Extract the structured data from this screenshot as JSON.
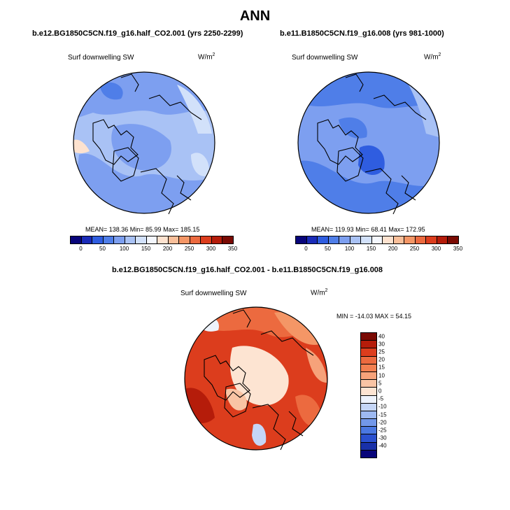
{
  "title": "ANN",
  "panels": [
    {
      "title": "b.e12.BG1850C5CN.f19_g16.half_CO2.001 (yrs 2250-2299)",
      "variable": "Surf downwelling SW",
      "units_base": "W/m",
      "units_exp": "2",
      "stats": "MEAN= 138.36  Min=  85.99  Max= 185.15"
    },
    {
      "title": "b.e11.B1850C5CN.f19_g16.008 (yrs 981-1000)",
      "variable": "Surf downwelling SW",
      "units_base": "W/m",
      "units_exp": "2",
      "stats": "MEAN= 119.93  Min=  68.41  Max= 172.95"
    }
  ],
  "diff_panel": {
    "title": "b.e12.BG1850C5CN.f19_g16.half_CO2.001 - b.e11.B1850C5CN.f19_g16.008",
    "variable": "Surf downwelling SW",
    "units_base": "W/m",
    "units_exp": "2",
    "stats": "MIN = -14.03 MAX =  54.15"
  },
  "colorbar_abs": {
    "ticks": [
      "0",
      "50",
      "100",
      "150",
      "200",
      "250",
      "300",
      "350"
    ],
    "colors": [
      "#08057a",
      "#1a2bb8",
      "#2f5de0",
      "#4f7ee8",
      "#7d9ff0",
      "#a9c2f5",
      "#d2e1fa",
      "#f4f7fd",
      "#fde2cf",
      "#f9bf9a",
      "#f49666",
      "#ec6a3f",
      "#dc3d1d",
      "#b51c0a",
      "#7a0a03"
    ]
  },
  "colorbar_diff": {
    "ticks": [
      "40",
      "30",
      "25",
      "20",
      "15",
      "10",
      "5",
      "0",
      "-5",
      "-10",
      "-15",
      "-20",
      "-25",
      "-30",
      "-40"
    ],
    "colors": [
      "#7a0a03",
      "#b51c0a",
      "#dc3d1d",
      "#ec6a3f",
      "#f27f50",
      "#f6a27a",
      "#f9c4a4",
      "#fde4d2",
      "#eef3fc",
      "#c5d6f7",
      "#9db9f1",
      "#7298ea",
      "#4a78e2",
      "#2a50cf",
      "#1830a8",
      "#08057a"
    ]
  }
}
